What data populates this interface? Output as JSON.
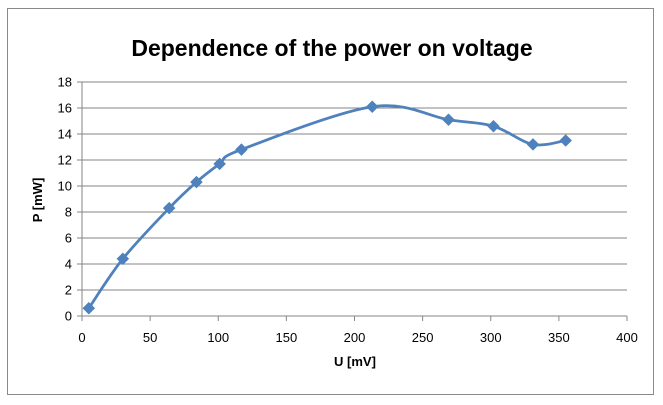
{
  "chart_data": {
    "type": "scatter",
    "title": "Dependence of the power on voltage",
    "xlabel": "U [mV]",
    "ylabel": "P [mW]",
    "xlim": [
      0,
      400
    ],
    "ylim": [
      0,
      18
    ],
    "xticks": [
      "0",
      "50",
      "100",
      "150",
      "200",
      "250",
      "300",
      "350",
      "400"
    ],
    "yticks": [
      "0",
      "2",
      "4",
      "6",
      "8",
      "10",
      "12",
      "14",
      "16",
      "18"
    ],
    "grid": "horizontal",
    "legend": "none",
    "line_style": "smooth",
    "marker": "diamond",
    "series": [
      {
        "color": "#4f81bd",
        "points": [
          {
            "x": 5,
            "y": 0.6
          },
          {
            "x": 30,
            "y": 4.4
          },
          {
            "x": 64,
            "y": 8.3
          },
          {
            "x": 84,
            "y": 10.3
          },
          {
            "x": 101,
            "y": 11.7
          },
          {
            "x": 117,
            "y": 12.8
          },
          {
            "x": 213,
            "y": 16.1
          },
          {
            "x": 269,
            "y": 15.1
          },
          {
            "x": 302,
            "y": 14.6
          },
          {
            "x": 331,
            "y": 13.2
          },
          {
            "x": 355,
            "y": 13.5
          }
        ]
      }
    ]
  }
}
